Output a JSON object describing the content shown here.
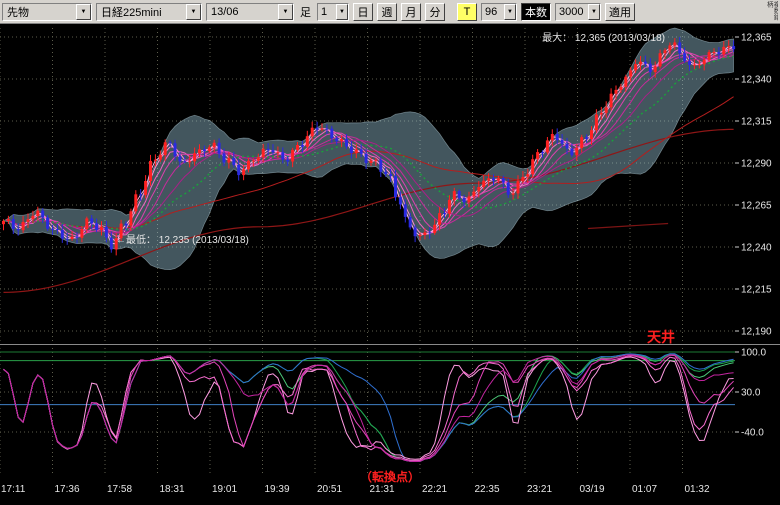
{
  "toolbar": {
    "market": "先物",
    "symbol": "日経225mini",
    "contract": "13/06",
    "bar_label": "足",
    "bar_interval": "1",
    "period_day": "日",
    "period_week": "週",
    "period_month": "月",
    "period_minute": "分",
    "t_button": "T",
    "visible_bars": "96",
    "count_label": "本数",
    "count_value": "3000",
    "apply": "適用",
    "side_label": "複数銘柄",
    "dropdown_arrow": "▼"
  },
  "chart": {
    "annotations": {
      "max_label": "最大： 12,365 (2013/03/18)",
      "min_label": "←最低： 12,235 (2013/03/18)",
      "ceiling_label": "天井",
      "turning_label": "（転換点）"
    },
    "price_labels": [
      {
        "text": "12,365",
        "value": 12365
      },
      {
        "text": "12,340",
        "value": 12340
      },
      {
        "text": "12,315",
        "value": 12315
      },
      {
        "text": "12,290",
        "value": 12290
      },
      {
        "text": "12,265",
        "value": 12265
      },
      {
        "text": "12,240",
        "value": 12240
      },
      {
        "text": "12,215",
        "value": 12215
      },
      {
        "text": "12,190",
        "value": 12190
      }
    ],
    "osc_labels": [
      {
        "text": "100.0",
        "value": 100
      },
      {
        "text": "30.0",
        "value": 30
      },
      {
        "text": "-40.0",
        "value": -40
      }
    ],
    "time_labels": [
      "17:11",
      "17:36",
      "17:58",
      "18:31",
      "19:01",
      "19:39",
      "20:51",
      "21:31",
      "22:21",
      "22:35",
      "23:21",
      "03/19",
      "01:07",
      "01:32"
    ]
  },
  "chart_data": {
    "type": "candlestick",
    "candle_count": 150,
    "price_range": {
      "min": 12235,
      "max": 12365
    },
    "axis": {
      "price_min": 12190,
      "price_max": 12365
    },
    "price_path_anchors": [
      [
        0.0,
        12252
      ],
      [
        0.02,
        12245
      ],
      [
        0.045,
        12256
      ],
      [
        0.07,
        12248
      ],
      [
        0.095,
        12242
      ],
      [
        0.115,
        12250
      ],
      [
        0.132,
        12245
      ],
      [
        0.148,
        12236
      ],
      [
        0.165,
        12252
      ],
      [
        0.185,
        12270
      ],
      [
        0.205,
        12288
      ],
      [
        0.225,
        12296
      ],
      [
        0.245,
        12284
      ],
      [
        0.265,
        12294
      ],
      [
        0.285,
        12300
      ],
      [
        0.305,
        12289
      ],
      [
        0.325,
        12279
      ],
      [
        0.345,
        12288
      ],
      [
        0.365,
        12296
      ],
      [
        0.385,
        12291
      ],
      [
        0.405,
        12298
      ],
      [
        0.43,
        12306
      ],
      [
        0.455,
        12300
      ],
      [
        0.48,
        12296
      ],
      [
        0.505,
        12289
      ],
      [
        0.525,
        12279
      ],
      [
        0.54,
        12263
      ],
      [
        0.555,
        12247
      ],
      [
        0.57,
        12243
      ],
      [
        0.585,
        12249
      ],
      [
        0.6,
        12258
      ],
      [
        0.615,
        12268
      ],
      [
        0.635,
        12262
      ],
      [
        0.655,
        12273
      ],
      [
        0.675,
        12279
      ],
      [
        0.695,
        12271
      ],
      [
        0.715,
        12281
      ],
      [
        0.735,
        12292
      ],
      [
        0.755,
        12301
      ],
      [
        0.775,
        12293
      ],
      [
        0.795,
        12303
      ],
      [
        0.815,
        12316
      ],
      [
        0.835,
        12326
      ],
      [
        0.855,
        12336
      ],
      [
        0.87,
        12348
      ],
      [
        0.885,
        12343
      ],
      [
        0.9,
        12353
      ],
      [
        0.915,
        12361
      ],
      [
        0.93,
        12349
      ],
      [
        0.945,
        12341
      ],
      [
        0.96,
        12347
      ],
      [
        0.975,
        12353
      ],
      [
        1.0,
        12359
      ]
    ],
    "long_ma_anchors": [
      [
        0,
        12213
      ],
      [
        0.35,
        12252
      ],
      [
        0.65,
        12278
      ],
      [
        1.0,
        12310
      ]
    ],
    "trend_segment": {
      "x1": 0.8,
      "p1": 12251,
      "x2": 0.909,
      "p2": 12254
    },
    "ma_ribbon_periods": [
      2,
      3,
      5,
      7,
      10,
      14
    ],
    "green_ma_period": 20,
    "red_ma_period": 45,
    "band": {
      "period": 18,
      "mult": 2
    },
    "oscillator": {
      "pink_periods": [
        8,
        12,
        17,
        23
      ],
      "green_periods": [
        30,
        40
      ],
      "blue_period": 52,
      "smooth": 3,
      "guides": [
        100,
        85,
        8
      ]
    },
    "colors": {
      "grid": "#5d5d4c",
      "up": "#ff2222",
      "down": "#2a2ae0",
      "ribbon": [
        "#ffb3e3",
        "#ff8cd4",
        "#f465c2",
        "#df40b0",
        "#c62b9b",
        "#a92088"
      ],
      "green_ma": "#19a23b",
      "red_ma": "#b31e1e",
      "long_ma": "#8f1616",
      "trend": "#7c1414",
      "band": "#a8d8ec",
      "osc_pink": [
        "#ff9ce2",
        "#f76ed0",
        "#e344ba",
        "#c325a0"
      ],
      "osc_green": [
        "#4cc878",
        "#1da34e"
      ],
      "osc_blue": "#2f6fd0",
      "guide_green": "#1d7a33",
      "guide_green2": "#2aa04a",
      "guide_blue": "#3f7fc4",
      "axis_text": "#e6e6e6",
      "red_text": "#ff2020"
    }
  }
}
